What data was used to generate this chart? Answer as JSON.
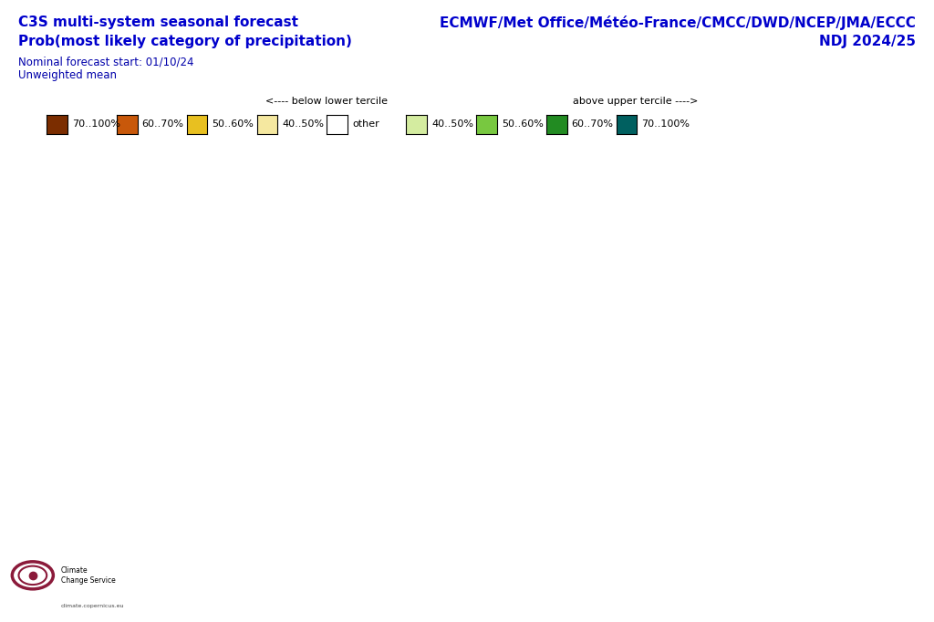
{
  "title_left1": "C3S multi-system seasonal forecast",
  "title_left2": "Prob(most likely category of precipitation)",
  "title_left3": "Nominal forecast start: 01/10/24",
  "title_left4": "Unweighted mean",
  "title_right1": "ECMWF/Met Office/Météo-France/CMCC/DWD/NCEP/JMA/ECCC",
  "title_right2": "NDJ 2024/25",
  "legend_below_label": "<---- below lower tercile",
  "legend_above_label": "above upper tercile ---->",
  "legend_dry": [
    {
      "label": "70..100%",
      "color": "#7B2D00"
    },
    {
      "label": "60..70%",
      "color": "#C8580A"
    },
    {
      "label": "50..60%",
      "color": "#E8C020"
    },
    {
      "label": "40..50%",
      "color": "#F5E8A0"
    },
    {
      "label": "other",
      "color": "#FFFFFF"
    }
  ],
  "legend_wet": [
    {
      "label": "40..50%",
      "color": "#D4ECA0"
    },
    {
      "label": "50..60%",
      "color": "#78C840"
    },
    {
      "label": "60..70%",
      "color": "#228B22"
    },
    {
      "label": "70..100%",
      "color": "#006060"
    }
  ],
  "map_extent": [
    -35,
    75,
    25,
    75
  ],
  "title_color": "#0000CC",
  "text_color_small": "#0000AA",
  "background_color": "#FFFFFF",
  "map_background": "#FFFFFF",
  "border_color": "#000000",
  "grid_color": "#888888",
  "coastline_color": "#000000",
  "country_color": "#888888",
  "fig_width": 10.24,
  "fig_height": 6.82,
  "dpi": 100
}
